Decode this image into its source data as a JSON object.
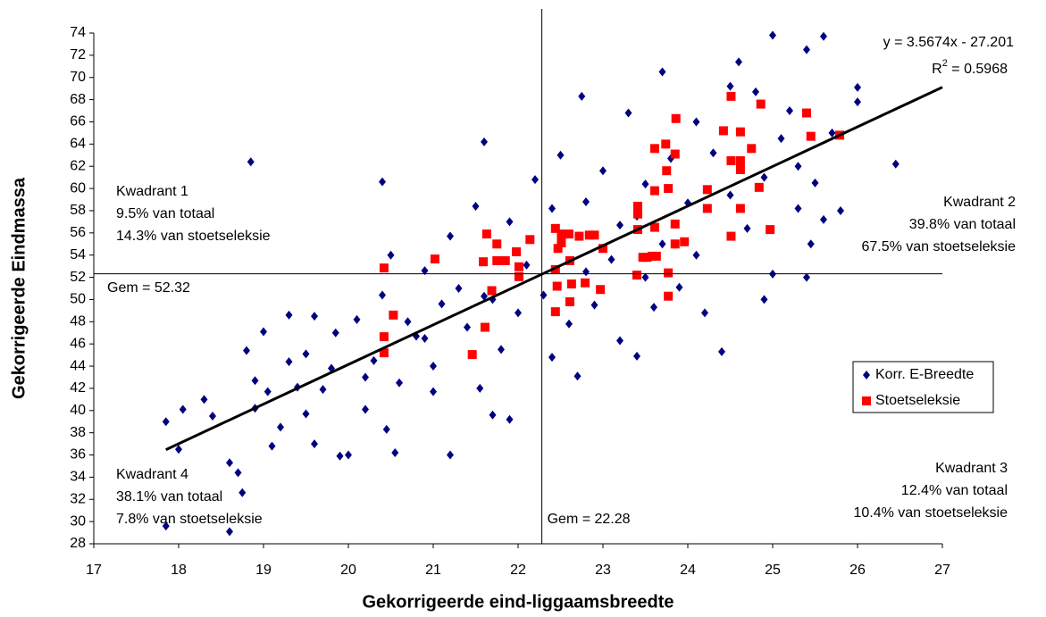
{
  "chart_data": {
    "type": "scatter",
    "x_label": "Gekorrigeerde eind-liggaamsbreedte",
    "y_label": "Gekorrigeerde Eindmassa",
    "xlim": [
      17,
      27
    ],
    "ylim": [
      28,
      74
    ],
    "xticks": [
      17,
      18,
      19,
      20,
      21,
      22,
      23,
      24,
      25,
      26,
      27
    ],
    "yticks": [
      28,
      30,
      32,
      34,
      36,
      38,
      40,
      42,
      44,
      46,
      48,
      50,
      52,
      54,
      56,
      58,
      60,
      62,
      64,
      66,
      68,
      70,
      72,
      74
    ],
    "grid": false,
    "legend": "right",
    "series": [
      {
        "name": "Korr. E-Breedte",
        "color": "#000080",
        "marker": "diamond",
        "x": [
          17.85,
          17.85,
          18.0,
          18.05,
          18.3,
          18.4,
          18.6,
          18.6,
          18.7,
          18.75,
          18.85,
          18.8,
          18.9,
          18.9,
          19.0,
          19.05,
          19.1,
          19.2,
          19.3,
          19.3,
          19.4,
          19.5,
          19.5,
          19.6,
          19.6,
          19.7,
          19.8,
          19.85,
          19.9,
          20.0,
          20.1,
          20.2,
          20.3,
          20.4,
          20.4,
          20.45,
          20.5,
          20.55,
          20.6,
          20.7,
          20.8,
          20.9,
          21.0,
          21.0,
          21.1,
          21.2,
          21.2,
          21.3,
          21.4,
          21.5,
          21.55,
          21.6,
          21.6,
          21.7,
          21.8,
          21.9,
          21.9,
          22.0,
          22.1,
          22.2,
          22.3,
          22.4,
          22.4,
          22.5,
          22.6,
          22.7,
          22.75,
          22.8,
          22.9,
          23.0,
          23.1,
          23.2,
          23.3,
          23.4,
          23.4,
          23.5,
          23.6,
          23.7,
          23.7,
          23.8,
          23.9,
          24.0,
          24.1,
          24.2,
          24.3,
          24.4,
          24.5,
          24.5,
          24.6,
          24.7,
          24.8,
          24.9,
          25.0,
          25.0,
          25.1,
          25.2,
          25.3,
          25.4,
          25.4,
          25.5,
          25.6,
          25.6,
          25.7,
          25.8,
          26.0,
          26.0,
          26.45,
          25.45,
          24.1,
          23.5,
          22.8,
          21.7,
          20.9,
          20.2,
          24.9,
          25.3,
          23.2,
          22.5
        ],
        "values": [
          39.0,
          29.6,
          36.5,
          40.1,
          41.0,
          39.5,
          29.1,
          35.3,
          34.4,
          32.6,
          62.4,
          45.4,
          42.7,
          40.2,
          47.1,
          41.7,
          36.8,
          38.5,
          44.4,
          48.6,
          42.1,
          39.7,
          45.1,
          37.0,
          48.5,
          41.9,
          43.8,
          47.0,
          35.9,
          36.0,
          48.2,
          40.1,
          44.5,
          60.6,
          50.4,
          38.3,
          54.0,
          36.2,
          42.5,
          48.0,
          46.7,
          52.6,
          41.7,
          44.0,
          49.6,
          36.0,
          55.7,
          51.0,
          47.5,
          58.4,
          42.0,
          64.2,
          50.3,
          39.6,
          45.5,
          57.0,
          39.2,
          48.8,
          53.1,
          60.8,
          50.4,
          44.8,
          58.2,
          63.0,
          47.8,
          43.1,
          68.3,
          58.8,
          49.5,
          61.6,
          53.6,
          46.3,
          66.8,
          44.9,
          57.5,
          60.4,
          49.3,
          70.5,
          55.0,
          62.7,
          51.1,
          58.7,
          66.0,
          48.8,
          63.2,
          45.3,
          69.2,
          59.4,
          71.4,
          56.4,
          68.7,
          61.0,
          73.8,
          52.3,
          64.5,
          67.0,
          58.2,
          72.5,
          52.0,
          60.5,
          73.7,
          57.2,
          65.0,
          58.0,
          69.1,
          67.8,
          62.2,
          55.0,
          54.0,
          52.0,
          52.5,
          50.0,
          46.5,
          43.0,
          50.0,
          62.0,
          56.7,
          55.2
        ]
      },
      {
        "name": "Stoetseleksie",
        "color": "#ff0000",
        "marker": "square",
        "x": [
          20.42,
          20.42,
          20.42,
          20.53,
          21.02,
          21.46,
          21.63,
          21.61,
          21.59,
          21.75,
          21.75,
          21.85,
          21.69,
          22.14,
          21.98,
          22.01,
          22.01,
          22.44,
          22.51,
          22.47,
          22.51,
          22.44,
          22.46,
          22.44,
          22.63,
          22.61,
          22.61,
          22.6,
          22.72,
          22.79,
          22.84,
          22.9,
          23.0,
          22.97,
          23.41,
          23.41,
          23.41,
          23.4,
          23.47,
          23.52,
          23.58,
          23.63,
          23.61,
          23.61,
          23.61,
          23.74,
          23.75,
          23.77,
          23.77,
          23.77,
          23.86,
          23.85,
          23.85,
          23.85,
          23.96,
          24.23,
          24.23,
          24.42,
          24.51,
          24.51,
          24.51,
          24.62,
          24.62,
          24.62,
          24.62,
          24.75,
          24.86,
          24.84,
          24.97,
          25.4,
          25.45,
          25.79
        ],
        "values": [
          52.84,
          46.65,
          45.2,
          48.6,
          53.65,
          45.04,
          55.9,
          47.5,
          53.4,
          55.0,
          53.5,
          53.5,
          50.8,
          55.4,
          54.3,
          52.95,
          52.06,
          56.4,
          55.9,
          54.6,
          55.1,
          52.7,
          51.2,
          48.9,
          51.4,
          53.5,
          49.8,
          55.9,
          55.7,
          51.5,
          55.8,
          55.8,
          54.6,
          50.9,
          56.3,
          57.7,
          58.4,
          52.2,
          53.8,
          53.8,
          53.9,
          53.9,
          63.6,
          59.8,
          56.5,
          64.0,
          61.6,
          60.0,
          50.3,
          52.4,
          66.3,
          63.1,
          56.8,
          55.0,
          55.2,
          58.2,
          59.9,
          65.2,
          62.5,
          55.7,
          68.3,
          62.5,
          61.7,
          65.1,
          58.2,
          63.6,
          67.6,
          60.1,
          56.3,
          66.8,
          64.7,
          64.8
        ]
      }
    ],
    "trendline": {
      "slope": 3.5674,
      "intercept": -27.201,
      "x": [
        17.85,
        27
      ],
      "label": "y = 3.5674x - 27.201",
      "r2": {
        "prefix": "R",
        "sup": "2",
        "text": " = 0.5968"
      }
    },
    "x_mean": {
      "value": 22.28,
      "label": "Gem = 22.28"
    },
    "y_mean": {
      "value": 52.32,
      "label": "Gem = 52.32"
    },
    "annotations": [
      [
        "Kwadrant 1",
        "9.5% van totaal",
        "14.3% van stoetseleksie"
      ],
      [
        "Kwadrant 2",
        "39.8% van totaal",
        "67.5% van stoetseleksie"
      ],
      [
        "Kwadrant 3",
        "12.4% van totaal",
        "10.4% van stoetseleksie"
      ],
      [
        "Kwadrant 4",
        "38.1% van totaal",
        "7.8% van stoetseleksie"
      ]
    ]
  }
}
